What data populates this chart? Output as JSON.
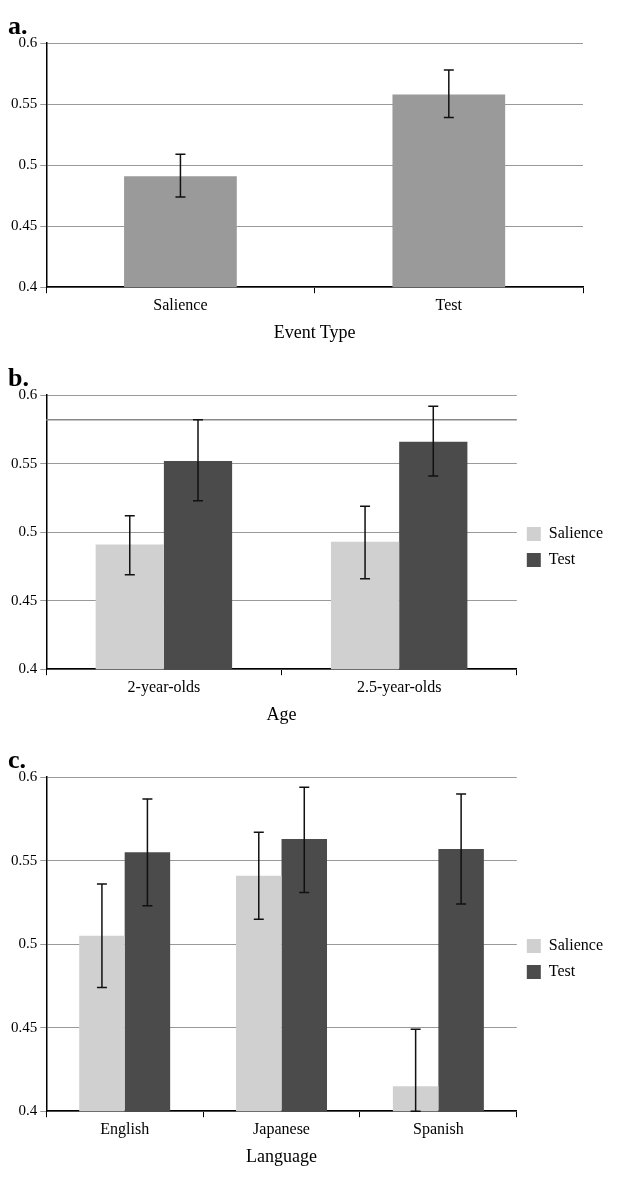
{
  "chart_data": [
    {
      "type": "bar",
      "title": "a.",
      "xlabel": "Event Type",
      "categories": [
        "Salience",
        "Test"
      ],
      "series": [
        {
          "color": "#999a99",
          "values": [
            0.491,
            0.558
          ],
          "errors": [
            [
              0.474,
              0.509
            ],
            [
              0.539,
              0.578
            ]
          ]
        }
      ],
      "ylim": [
        0.4,
        0.6
      ],
      "yticks": [
        0.4,
        0.45,
        0.5,
        0.55,
        0.6
      ],
      "grid": "y"
    },
    {
      "type": "bar",
      "title": "b.",
      "xlabel": "Age",
      "categories": [
        "2-year-olds",
        "2.5-year-olds"
      ],
      "series": [
        {
          "name": "Salience",
          "color": "#d0d0d0",
          "values": [
            0.491,
            0.493
          ],
          "errors": [
            [
              0.469,
              0.512
            ],
            [
              0.466,
              0.519
            ]
          ]
        },
        {
          "name": "Test",
          "color": "#4b4b4b",
          "values": [
            0.552,
            0.566
          ],
          "errors": [
            [
              0.523,
              0.582
            ],
            [
              0.541,
              0.592
            ]
          ]
        }
      ],
      "ylim": [
        0.4,
        0.6
      ],
      "yticks": [
        0.4,
        0.45,
        0.5,
        0.55,
        0.6
      ],
      "grid": "y",
      "legend": "right",
      "ref_lines": [
        {
          "axis": "y",
          "value": 0.582,
          "color": "#888888"
        }
      ]
    },
    {
      "type": "bar",
      "title": "c.",
      "xlabel": "Language",
      "categories": [
        "English",
        "Japanese",
        "Spanish"
      ],
      "series": [
        {
          "name": "Salience",
          "color": "#d0d0d0",
          "values": [
            0.505,
            0.541,
            0.415
          ],
          "errors": [
            [
              0.474,
              0.536
            ],
            [
              0.515,
              0.567
            ],
            [
              0.4,
              0.449
            ]
          ]
        },
        {
          "name": "Test",
          "color": "#4b4b4b",
          "values": [
            0.555,
            0.563,
            0.557
          ],
          "errors": [
            [
              0.523,
              0.587
            ],
            [
              0.531,
              0.594
            ],
            [
              0.524,
              0.59
            ]
          ]
        }
      ],
      "ylim": [
        0.4,
        0.6
      ],
      "yticks": [
        0.4,
        0.45,
        0.5,
        0.55,
        0.6
      ],
      "grid": "y",
      "legend": "right"
    }
  ]
}
